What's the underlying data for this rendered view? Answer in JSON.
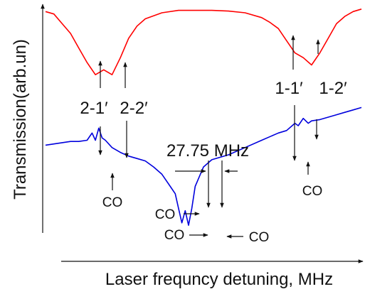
{
  "chart_data": {
    "type": "line",
    "title": "",
    "xlabel": "Laser frequncy detuning, MHz",
    "ylabel": "Transmission(arb.un)",
    "x_ticks": "none",
    "y_ticks": "none",
    "grid": false,
    "legend": "none",
    "series": [
      {
        "color": "#ff0000",
        "x": [
          0,
          5,
          10,
          15,
          20,
          25,
          30,
          35,
          40,
          45,
          50,
          55,
          60,
          70,
          80,
          90,
          100,
          110,
          120,
          130,
          135,
          140,
          145,
          150,
          155,
          160,
          165,
          170,
          175,
          180,
          185,
          190
        ],
        "y": [
          0.97,
          0.96,
          0.92,
          0.88,
          0.82,
          0.76,
          0.71,
          0.73,
          0.71,
          0.78,
          0.86,
          0.91,
          0.94,
          0.965,
          0.975,
          0.975,
          0.975,
          0.972,
          0.965,
          0.945,
          0.925,
          0.9,
          0.85,
          0.8,
          0.78,
          0.75,
          0.8,
          0.86,
          0.92,
          0.95,
          0.97,
          0.98
        ]
      },
      {
        "color": "#0000dd",
        "x": [
          0,
          5,
          10,
          15,
          20,
          25,
          28,
          30,
          32,
          34,
          36,
          40,
          45,
          50,
          55,
          60,
          65,
          70,
          75,
          78,
          80,
          82,
          84,
          86,
          88,
          90,
          95,
          100,
          110,
          120,
          130,
          140,
          145,
          150,
          152,
          155,
          158,
          160,
          165,
          170,
          175,
          180,
          185,
          190
        ],
        "y": [
          0.42,
          0.425,
          0.43,
          0.435,
          0.435,
          0.44,
          0.47,
          0.44,
          0.49,
          0.45,
          0.44,
          0.41,
          0.39,
          0.375,
          0.365,
          0.355,
          0.33,
          0.3,
          0.25,
          0.22,
          0.16,
          0.1,
          0.15,
          0.09,
          0.16,
          0.25,
          0.33,
          0.36,
          0.38,
          0.41,
          0.44,
          0.47,
          0.48,
          0.51,
          0.5,
          0.53,
          0.51,
          0.52,
          0.525,
          0.535,
          0.545,
          0.555,
          0.565,
          0.575
        ]
      }
    ],
    "annotations": [
      {
        "text": "2-1′"
      },
      {
        "text": "2-2′"
      },
      {
        "text": "1-1′"
      },
      {
        "text": "1-2′"
      },
      {
        "text": "27.75 MHz"
      },
      {
        "text": "CO"
      },
      {
        "text": "CO"
      },
      {
        "text": "CO"
      },
      {
        "text": "CO"
      },
      {
        "text": "CO"
      }
    ]
  }
}
